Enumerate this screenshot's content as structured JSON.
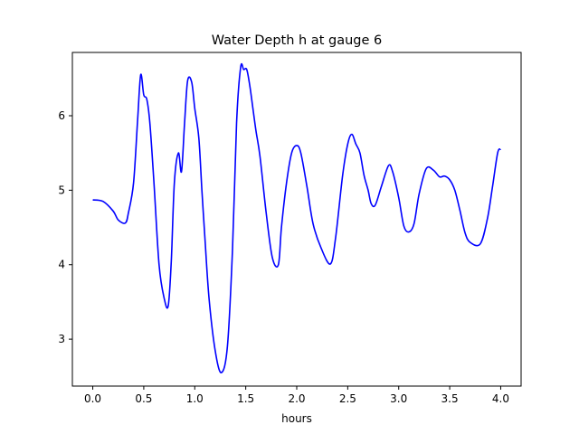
{
  "chart_data": {
    "type": "line",
    "title": "Water Depth h at gauge 6",
    "xlabel": "hours",
    "ylabel": "",
    "xlim": [
      -0.2,
      4.2
    ],
    "ylim": [
      2.37,
      6.85
    ],
    "xticks": [
      0.0,
      0.5,
      1.0,
      1.5,
      2.0,
      2.5,
      3.0,
      3.5,
      4.0
    ],
    "xtick_labels": [
      "0.0",
      "0.5",
      "1.0",
      "1.5",
      "2.0",
      "2.5",
      "3.0",
      "3.5",
      "4.0"
    ],
    "yticks": [
      3,
      4,
      5,
      6
    ],
    "ytick_labels": [
      "3",
      "4",
      "5",
      "6"
    ],
    "grid": false,
    "series": [
      {
        "color": "#0000ff",
        "x": [
          0.0,
          0.1,
          0.2,
          0.25,
          0.32,
          0.35,
          0.4,
          0.44,
          0.47,
          0.5,
          0.53,
          0.56,
          0.6,
          0.65,
          0.7,
          0.74,
          0.77,
          0.8,
          0.84,
          0.87,
          0.9,
          0.93,
          0.97,
          1.0,
          1.04,
          1.07,
          1.1,
          1.14,
          1.2,
          1.26,
          1.32,
          1.37,
          1.41,
          1.45,
          1.48,
          1.51,
          1.54,
          1.57,
          1.6,
          1.64,
          1.7,
          1.76,
          1.82,
          1.85,
          1.9,
          1.95,
          2.0,
          2.04,
          2.1,
          2.16,
          2.24,
          2.33,
          2.38,
          2.45,
          2.5,
          2.54,
          2.58,
          2.62,
          2.66,
          2.7,
          2.73,
          2.77,
          2.83,
          2.9,
          2.94,
          3.0,
          3.05,
          3.1,
          3.15,
          3.2,
          3.27,
          3.34,
          3.4,
          3.45,
          3.5,
          3.55,
          3.6,
          3.65,
          3.7,
          3.8,
          3.87,
          3.92,
          3.97,
          4.0
        ],
        "y": [
          4.87,
          4.85,
          4.72,
          4.6,
          4.56,
          4.7,
          5.1,
          5.95,
          6.55,
          6.28,
          6.22,
          5.9,
          5.1,
          4.0,
          3.55,
          3.45,
          4.05,
          5.1,
          5.5,
          5.25,
          5.9,
          6.47,
          6.45,
          6.1,
          5.7,
          5.0,
          4.35,
          3.55,
          2.85,
          2.55,
          2.9,
          4.2,
          5.9,
          6.65,
          6.62,
          6.62,
          6.4,
          6.1,
          5.8,
          5.45,
          4.7,
          4.1,
          4.0,
          4.5,
          5.1,
          5.5,
          5.6,
          5.5,
          5.05,
          4.55,
          4.22,
          4.01,
          4.35,
          5.2,
          5.62,
          5.75,
          5.62,
          5.5,
          5.2,
          5.0,
          4.82,
          4.8,
          5.05,
          5.33,
          5.25,
          4.9,
          4.52,
          4.44,
          4.55,
          4.95,
          5.29,
          5.27,
          5.18,
          5.19,
          5.14,
          5.0,
          4.73,
          4.43,
          4.3,
          4.28,
          4.62,
          5.05,
          5.5,
          5.55
        ]
      }
    ]
  }
}
